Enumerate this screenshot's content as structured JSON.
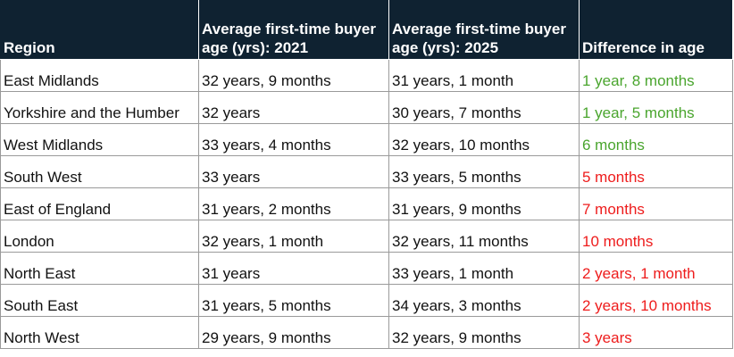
{
  "colors": {
    "header_bg": "#0f2231",
    "header_text": "#ffffff",
    "gridline": "#9a9a9a",
    "positive": "#4aa52e",
    "negative": "#ee1c1c"
  },
  "table": {
    "headers": [
      "Region",
      "Average first-time buyer age (yrs): 2021",
      "Average first-time buyer age (yrs): 2025",
      "Difference in age"
    ],
    "rows": [
      {
        "region": "East Midlands",
        "age_2021": "32 years, 9 months",
        "age_2025": "31 years, 1 month",
        "difference": "1 year, 8 months",
        "difference_color": "green"
      },
      {
        "region": "Yorkshire and the Humber",
        "age_2021": "32 years",
        "age_2025": "30 years, 7 months",
        "difference": "1 year, 5 months",
        "difference_color": "green"
      },
      {
        "region": "West Midlands",
        "age_2021": "33 years, 4 months",
        "age_2025": "32 years, 10 months",
        "difference": "6 months",
        "difference_color": "green"
      },
      {
        "region": "South West",
        "age_2021": "33 years",
        "age_2025": "33 years, 5 months",
        "difference": "5 months",
        "difference_color": "red"
      },
      {
        "region": "East of England",
        "age_2021": "31 years, 2 months",
        "age_2025": "31 years, 9 months",
        "difference": "7 months",
        "difference_color": "red"
      },
      {
        "region": "London",
        "age_2021": "32 years, 1 month",
        "age_2025": "32 years, 11 months",
        "difference": "10 months",
        "difference_color": "red"
      },
      {
        "region": "North East",
        "age_2021": "31 years",
        "age_2025": "33 years, 1 month",
        "difference": "2 years, 1 month",
        "difference_color": "red"
      },
      {
        "region": "South East",
        "age_2021": "31 years, 5 months",
        "age_2025": "34 years, 3 months",
        "difference": "2 years, 10 months",
        "difference_color": "red"
      },
      {
        "region": "North West",
        "age_2021": "29 years, 9 months",
        "age_2025": "32 years, 9 months",
        "difference": "3 years",
        "difference_color": "red"
      }
    ]
  }
}
